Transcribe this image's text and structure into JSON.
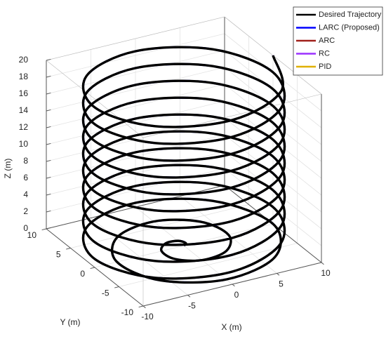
{
  "chart_data": {
    "type": "line3d",
    "xlabel": "X (m)",
    "ylabel": "Y (m)",
    "zlabel": "Z (m)",
    "xlim": [
      -10,
      10
    ],
    "ylim": [
      -10,
      10
    ],
    "zlim": [
      0,
      20
    ],
    "xticks": [
      -10,
      -5,
      0,
      5,
      10
    ],
    "yticks": [
      -10,
      -5,
      0,
      5,
      10
    ],
    "zticks": [
      0,
      2,
      4,
      6,
      8,
      10,
      12,
      14,
      16,
      18,
      20
    ],
    "grid": true,
    "legend": "top-right",
    "x": [
      0,
      0.44,
      0,
      -1.33,
      -2.5,
      -2.21,
      0,
      3.09,
      5,
      3.98,
      0,
      -4.86,
      -7.5,
      -5.75,
      0,
      6.63,
      10,
      7.07,
      0,
      -7.07,
      -10,
      -7.07,
      0,
      7.07,
      10,
      7.07,
      0,
      -7.07,
      -10,
      -7.07,
      0,
      7.07,
      10,
      7.07,
      0,
      -7.07,
      -10,
      -7.07,
      0,
      7.07,
      10,
      7.07,
      0,
      -7.07,
      -10,
      -7.07,
      0,
      7.07,
      10,
      7.07,
      0,
      -7.07,
      -10,
      -7.07,
      0,
      7.07,
      10,
      7.07,
      0,
      -7.07,
      -10,
      -7.07,
      0,
      7.07,
      10,
      7.07,
      0,
      -7.07,
      -10,
      -7.07,
      0,
      7.07,
      10,
      7.07,
      0,
      -7.07,
      -10,
      -7.07,
      0,
      7.07,
      10,
      7.07,
      0,
      -7.07,
      -10,
      -7.07,
      0,
      7.07,
      10,
      7.07,
      0,
      -7.07,
      -10,
      -7.07,
      0,
      7.07,
      10
    ],
    "y": [
      0,
      0.44,
      1.25,
      1.33,
      0,
      -2.21,
      -3.75,
      -3.09,
      0,
      3.98,
      6.25,
      4.86,
      0,
      -5.75,
      -8.75,
      -6.63,
      0,
      7.07,
      10,
      7.07,
      0,
      -7.07,
      -10,
      -7.07,
      0,
      7.07,
      10,
      7.07,
      0,
      -7.07,
      -10,
      -7.07,
      0,
      7.07,
      10,
      7.07,
      0,
      -7.07,
      -10,
      -7.07,
      0,
      7.07,
      10,
      7.07,
      0,
      -7.07,
      -10,
      -7.07,
      0,
      7.07,
      10,
      7.07,
      0,
      -7.07,
      -10,
      -7.07,
      0,
      7.07,
      10,
      7.07,
      0,
      -7.07,
      -10,
      -7.07,
      0,
      7.07,
      10,
      7.07,
      0,
      -7.07,
      -10,
      -7.07,
      0,
      7.07,
      10,
      7.07,
      0,
      -7.07,
      -10,
      -7.07,
      0,
      7.07,
      10,
      7.07,
      0,
      -7.07,
      -10,
      -7.07,
      0,
      7.07,
      10,
      7.07,
      0,
      -7.07,
      -10,
      -7.07,
      0
    ],
    "z": [
      0,
      0,
      0,
      0,
      0,
      0,
      0,
      0,
      0,
      0,
      0,
      0,
      0,
      0,
      0,
      0,
      0,
      0.25,
      0.5,
      0.75,
      1,
      1.25,
      1.5,
      1.75,
      2,
      2.25,
      2.5,
      2.75,
      3,
      3.25,
      3.5,
      3.75,
      4,
      4.25,
      4.5,
      4.75,
      5,
      5.25,
      5.5,
      5.75,
      6,
      6.25,
      6.5,
      6.75,
      7,
      7.25,
      7.5,
      7.75,
      8,
      8.25,
      8.5,
      8.75,
      9,
      9.25,
      9.5,
      9.75,
      10,
      10.25,
      10.5,
      10.75,
      11,
      11.25,
      11.5,
      11.75,
      12,
      12.25,
      12.5,
      12.75,
      13,
      13.25,
      13.5,
      13.75,
      14,
      14.25,
      14.5,
      14.75,
      15,
      15.25,
      15.5,
      15.75,
      16,
      16.25,
      16.5,
      16.75,
      17,
      17.25,
      17.5,
      17.75,
      18,
      18.25,
      18.5,
      18.75,
      19,
      19.25,
      19.5,
      19.75,
      20
    ],
    "series": [
      {
        "name": "Desired Trajectory",
        "color": "#000000"
      },
      {
        "name": "LARC (Proposed)",
        "color": "#0000ff"
      },
      {
        "name": "ARC",
        "color": "#a0201a"
      },
      {
        "name": "RC",
        "color": "#9b30ff"
      },
      {
        "name": "PID",
        "color": "#e0b000"
      }
    ]
  }
}
